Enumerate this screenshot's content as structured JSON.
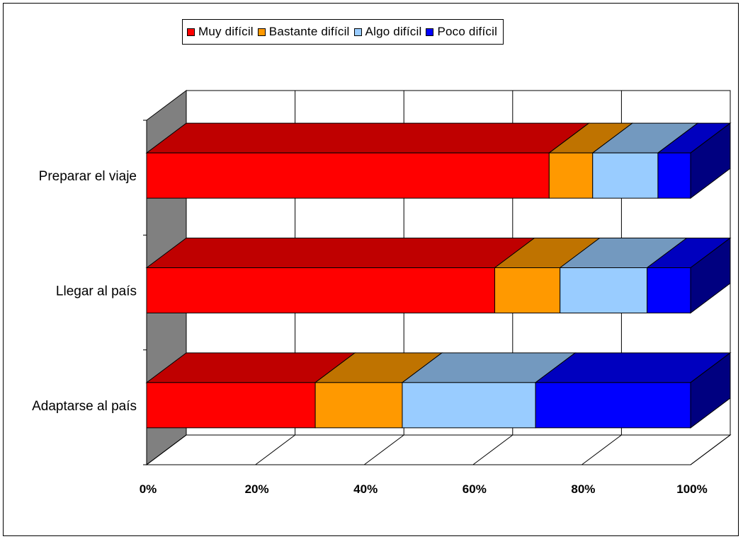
{
  "chart_data": {
    "type": "bar",
    "orientation": "horizontal",
    "stacking": "percent",
    "style": "3d",
    "categories": [
      "Preparar el viaje",
      "Llegar al país",
      "Adaptarse al país"
    ],
    "series": [
      {
        "name": "Muy difícil",
        "color": "#FF0000",
        "values": [
          74,
          64,
          31
        ]
      },
      {
        "name": "Bastante difícil",
        "color": "#FF9900",
        "values": [
          8,
          12,
          16
        ]
      },
      {
        "name": "Algo difícil",
        "color": "#99CCFF",
        "values": [
          12,
          16,
          24.5
        ]
      },
      {
        "name": "Poco difícil",
        "color": "#0000FF",
        "values": [
          6,
          8,
          28.5
        ]
      }
    ],
    "xlim": [
      0,
      100
    ],
    "xticks": [
      "0%",
      "20%",
      "40%",
      "60%",
      "80%",
      "100%"
    ],
    "grid": true,
    "legend_position": "top"
  }
}
